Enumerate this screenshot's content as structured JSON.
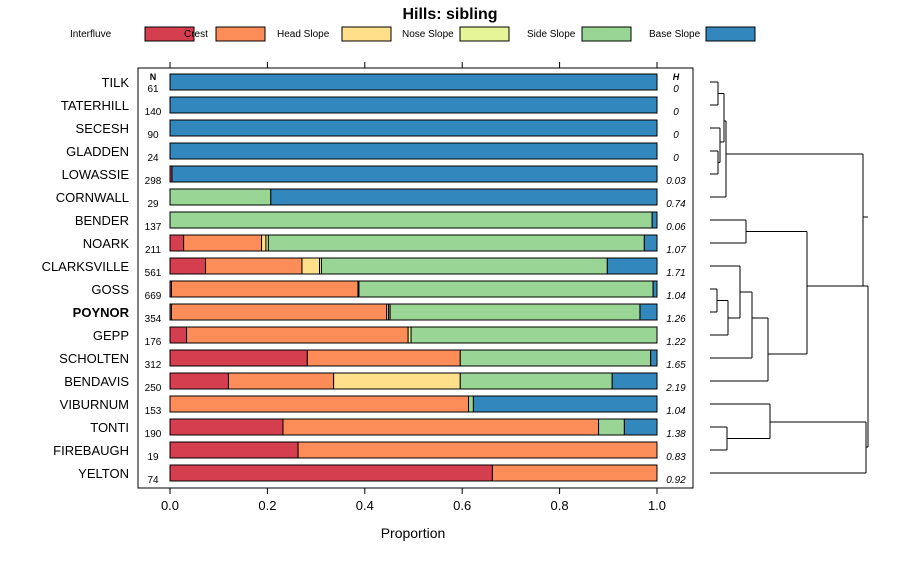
{
  "chart_data": {
    "type": "bar",
    "orientation": "horizontal-stacked",
    "title": "Hills: sibling",
    "xlabel": "Proportion",
    "xlim": [
      0,
      1
    ],
    "xticks": [
      "0.0",
      "0.2",
      "0.4",
      "0.6",
      "0.8",
      "1.0"
    ],
    "n_header": "N",
    "h_header": "H",
    "highlight": "POYNOR",
    "legend": [
      {
        "name": "Interfluve",
        "color": "#d53e4f"
      },
      {
        "name": "Crest",
        "color": "#fc8d59"
      },
      {
        "name": "Head Slope",
        "color": "#fee08b"
      },
      {
        "name": "Nose Slope",
        "color": "#e6f598"
      },
      {
        "name": "Side Slope",
        "color": "#99d594"
      },
      {
        "name": "Base Slope",
        "color": "#3288bd"
      }
    ],
    "rows": [
      {
        "name": "TILK",
        "n": "61",
        "h": "0",
        "values": [
          0,
          0,
          0,
          0,
          0,
          1.0
        ]
      },
      {
        "name": "TATERHILL",
        "n": "140",
        "h": "0",
        "values": [
          0,
          0,
          0,
          0,
          0,
          1.0
        ]
      },
      {
        "name": "SECESH",
        "n": "90",
        "h": "0",
        "values": [
          0,
          0,
          0,
          0,
          0,
          1.0
        ]
      },
      {
        "name": "GLADDEN",
        "n": "24",
        "h": "0",
        "values": [
          0,
          0,
          0,
          0,
          0,
          1.0
        ]
      },
      {
        "name": "LOWASSIE",
        "n": "298",
        "h": "0.03",
        "values": [
          0.004,
          0,
          0,
          0,
          0,
          0.996
        ]
      },
      {
        "name": "CORNWALL",
        "n": "29",
        "h": "0.74",
        "values": [
          0,
          0,
          0,
          0,
          0.207,
          0.793
        ]
      },
      {
        "name": "BENDER",
        "n": "137",
        "h": "0.06",
        "values": [
          0,
          0,
          0,
          0,
          0.99,
          0.01
        ]
      },
      {
        "name": "NOARK",
        "n": "211",
        "h": "1.07",
        "values": [
          0.028,
          0.16,
          0.009,
          0.005,
          0.772,
          0.026
        ]
      },
      {
        "name": "CLARKSVILLE",
        "n": "561",
        "h": "1.71",
        "values": [
          0.073,
          0.198,
          0.036,
          0.004,
          0.587,
          0.102
        ]
      },
      {
        "name": "GOSS",
        "n": "669",
        "h": "1.04",
        "values": [
          0.003,
          0.383,
          0,
          0.002,
          0.604,
          0.008
        ]
      },
      {
        "name": "POYNOR",
        "n": "354",
        "h": "1.26",
        "values": [
          0.003,
          0.442,
          0.004,
          0.003,
          0.513,
          0.035
        ]
      },
      {
        "name": "GEPP",
        "n": "176",
        "h": "1.22",
        "values": [
          0.034,
          0.455,
          0,
          0.006,
          0.505,
          0
        ]
      },
      {
        "name": "SCHOLTEN",
        "n": "312",
        "h": "1.65",
        "values": [
          0.282,
          0.314,
          0,
          0,
          0.391,
          0.013
        ]
      },
      {
        "name": "BENDAVIS",
        "n": "250",
        "h": "2.19",
        "values": [
          0.12,
          0.216,
          0.26,
          0,
          0.312,
          0.092
        ]
      },
      {
        "name": "VIBURNUM",
        "n": "153",
        "h": "1.04",
        "values": [
          0,
          0.613,
          0,
          0,
          0.01,
          0.377
        ]
      },
      {
        "name": "TONTI",
        "n": "190",
        "h": "1.38",
        "values": [
          0.232,
          0.648,
          0,
          0,
          0.053,
          0.067
        ]
      },
      {
        "name": "FIREBAUGH",
        "n": "19",
        "h": "0.83",
        "values": [
          0.263,
          0.737,
          0,
          0,
          0,
          0
        ]
      },
      {
        "name": "YELTON",
        "n": "74",
        "h": "0.92",
        "values": [
          0.662,
          0.338,
          0,
          0,
          0,
          0
        ]
      }
    ]
  }
}
